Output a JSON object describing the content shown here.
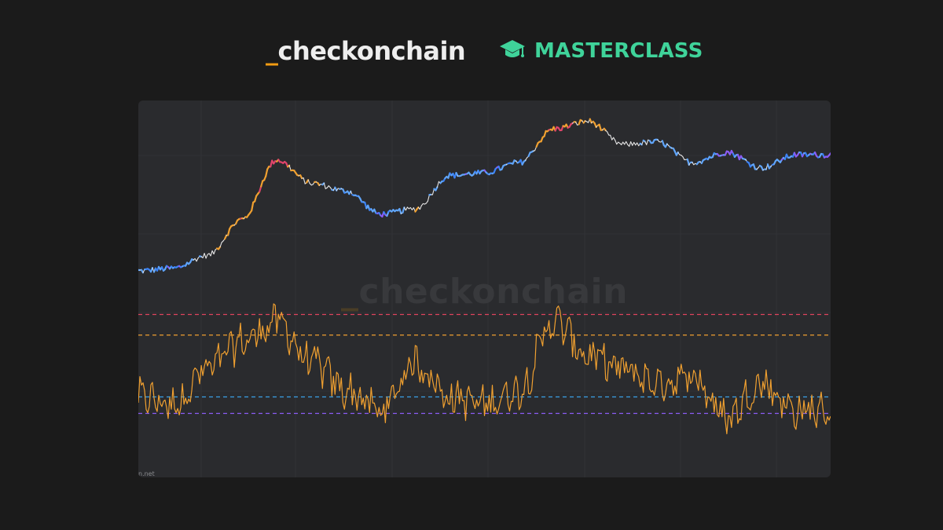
{
  "brand": {
    "underscore": "_",
    "name": "checkonchain",
    "masterclass_label": "MASTERCLASS",
    "masterclass_icon": "graduation-cap-icon",
    "accent_orange": "#f39c12",
    "accent_green": "#3fd39a"
  },
  "watermark": {
    "underscore": "_",
    "text": "checkonchain"
  },
  "footer_credit": "n.net",
  "chart_data": {
    "type": "line",
    "title": "",
    "xlabel": "",
    "ylabel": "",
    "grid": true,
    "legend": "none",
    "x": [
      0,
      5,
      10,
      15,
      20,
      25,
      30,
      35,
      40,
      45,
      50,
      55,
      60,
      65,
      70,
      75,
      80,
      85,
      90,
      95,
      100
    ],
    "series": [
      {
        "role": "price",
        "colored_by_oscillator": true,
        "values": [
          32,
          33,
          38,
          52,
          75,
          66,
          63,
          54,
          56,
          69,
          70,
          74,
          87,
          90,
          81,
          82,
          74,
          78,
          72,
          77,
          77
        ]
      },
      {
        "role": "oscillator",
        "color": "#f0a030",
        "values": [
          0.3,
          0.25,
          0.5,
          0.7,
          0.85,
          0.55,
          0.35,
          0.2,
          0.55,
          0.3,
          0.25,
          0.35,
          0.85,
          0.6,
          0.5,
          0.4,
          0.45,
          0.15,
          0.4,
          0.2,
          0.2
        ]
      }
    ],
    "color_scale": {
      "low": "#3b82f6",
      "low_mid": "#60a5fa",
      "neutral": "#e5e5e5",
      "high_mid": "#f0a030",
      "high": "#e0446a",
      "lowest": "#8b5cf6"
    },
    "reference_levels": [
      {
        "value": 0.9,
        "color": "#e0445e"
      },
      {
        "value": 0.75,
        "color": "#f0a030"
      },
      {
        "value": 0.3,
        "color": "#3aa0e8"
      },
      {
        "value": 0.18,
        "color": "#8b5cf6"
      }
    ]
  }
}
